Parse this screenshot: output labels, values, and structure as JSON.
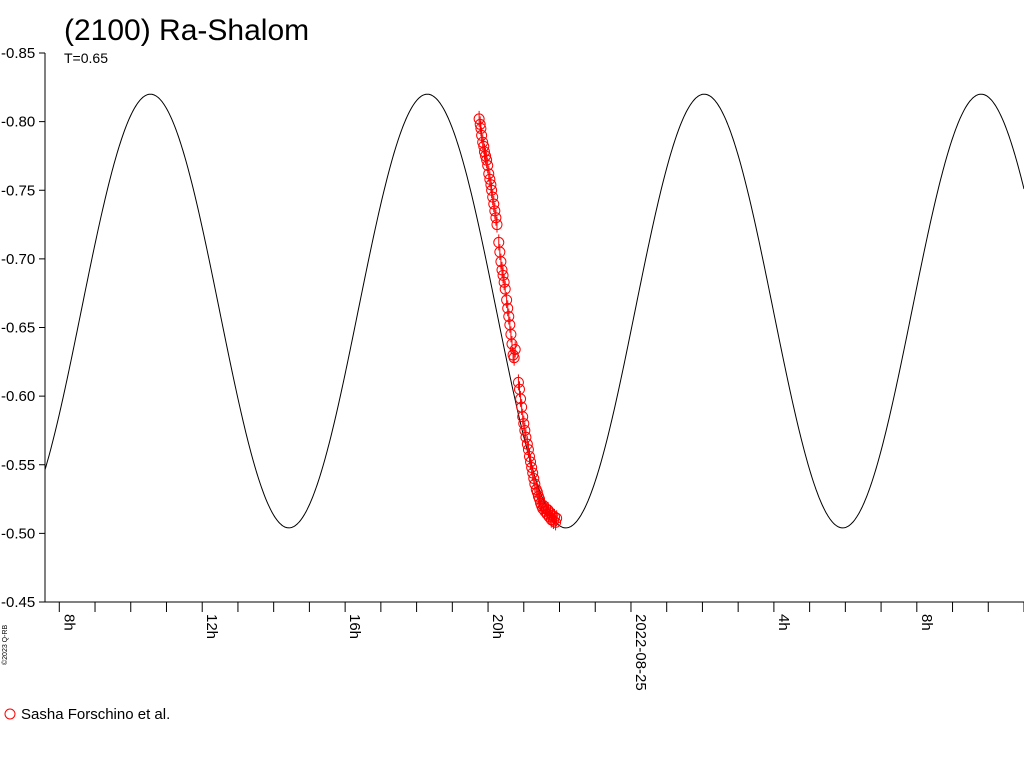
{
  "chart_data": {
    "type": "scatter",
    "title": "(2100) Ra-Shalom",
    "subtitle": "T=0.65",
    "copyright": "©2023 Q-RB",
    "y_axis": {
      "inverted": true,
      "range": [
        -0.85,
        -0.45
      ],
      "ticks": [
        -0.85,
        -0.8,
        -0.75,
        -0.7,
        -0.65,
        -0.6,
        -0.55,
        -0.5,
        -0.45
      ],
      "tick_labels": [
        "-0.85",
        "-0.80",
        "-0.75",
        "-0.70",
        "-0.65",
        "-0.60",
        "-0.55",
        "-0.50",
        "-0.45"
      ]
    },
    "x_axis": {
      "unit": "hours",
      "range": [
        7.6,
        35.0
      ],
      "labeled_ticks": [
        {
          "x": 8,
          "label": "8h"
        },
        {
          "x": 12,
          "label": "12h"
        },
        {
          "x": 16,
          "label": "16h"
        },
        {
          "x": 20,
          "label": "20h"
        },
        {
          "x": 24,
          "label": "2022-08-25"
        },
        {
          "x": 28,
          "label": "4h"
        },
        {
          "x": 32,
          "label": "8h"
        }
      ],
      "minor_tick_step": 1
    },
    "model_curve": {
      "period_hours": 7.75,
      "mean_mag": -0.662,
      "amplitude": 0.158,
      "max_bright_time": 10.55
    },
    "series": [
      {
        "name": "Sasha Forschino et al.",
        "color": "#ff0000",
        "marker": "open-circle",
        "points": [
          [
            19.75,
            -0.802
          ],
          [
            19.78,
            -0.798
          ],
          [
            19.8,
            -0.795
          ],
          [
            19.82,
            -0.79
          ],
          [
            19.85,
            -0.785
          ],
          [
            19.88,
            -0.782
          ],
          [
            19.9,
            -0.778
          ],
          [
            19.93,
            -0.775
          ],
          [
            19.96,
            -0.772
          ],
          [
            19.99,
            -0.768
          ],
          [
            20.02,
            -0.762
          ],
          [
            20.05,
            -0.758
          ],
          [
            20.08,
            -0.754
          ],
          [
            20.1,
            -0.75
          ],
          [
            20.13,
            -0.745
          ],
          [
            20.16,
            -0.74
          ],
          [
            20.19,
            -0.735
          ],
          [
            20.22,
            -0.73
          ],
          [
            20.25,
            -0.725
          ],
          [
            20.3,
            -0.712
          ],
          [
            20.33,
            -0.705
          ],
          [
            20.36,
            -0.698
          ],
          [
            20.39,
            -0.692
          ],
          [
            20.42,
            -0.688
          ],
          [
            20.45,
            -0.683
          ],
          [
            20.48,
            -0.678
          ],
          [
            20.52,
            -0.67
          ],
          [
            20.55,
            -0.664
          ],
          [
            20.58,
            -0.658
          ],
          [
            20.61,
            -0.652
          ],
          [
            20.64,
            -0.645
          ],
          [
            20.67,
            -0.638
          ],
          [
            20.7,
            -0.63
          ],
          [
            20.73,
            -0.628
          ],
          [
            20.76,
            -0.634
          ],
          [
            20.85,
            -0.61
          ],
          [
            20.88,
            -0.605
          ],
          [
            20.91,
            -0.598
          ],
          [
            20.94,
            -0.592
          ],
          [
            20.97,
            -0.585
          ],
          [
            21.0,
            -0.58
          ],
          [
            21.03,
            -0.575
          ],
          [
            21.06,
            -0.57
          ],
          [
            21.1,
            -0.565
          ],
          [
            21.13,
            -0.561
          ],
          [
            21.16,
            -0.556
          ],
          [
            21.19,
            -0.552
          ],
          [
            21.22,
            -0.548
          ],
          [
            21.25,
            -0.544
          ],
          [
            21.28,
            -0.54
          ],
          [
            21.31,
            -0.536
          ],
          [
            21.35,
            -0.532
          ],
          [
            21.38,
            -0.53
          ],
          [
            21.41,
            -0.527
          ],
          [
            21.44,
            -0.525
          ],
          [
            21.47,
            -0.522
          ],
          [
            21.5,
            -0.52
          ],
          [
            21.53,
            -0.518
          ],
          [
            21.56,
            -0.52
          ],
          [
            21.59,
            -0.516
          ],
          [
            21.62,
            -0.518
          ],
          [
            21.65,
            -0.514
          ],
          [
            21.68,
            -0.517
          ],
          [
            21.71,
            -0.512
          ],
          [
            21.74,
            -0.515
          ],
          [
            21.77,
            -0.51
          ],
          [
            21.8,
            -0.513
          ],
          [
            21.83,
            -0.509
          ],
          [
            21.86,
            -0.512
          ],
          [
            21.89,
            -0.508
          ],
          [
            21.92,
            -0.511
          ]
        ]
      }
    ],
    "legend": {
      "placement": "bottom-left",
      "entries": [
        {
          "label": "Sasha Forschino et al.",
          "color": "#ff0000",
          "marker": "open-circle"
        }
      ]
    }
  }
}
